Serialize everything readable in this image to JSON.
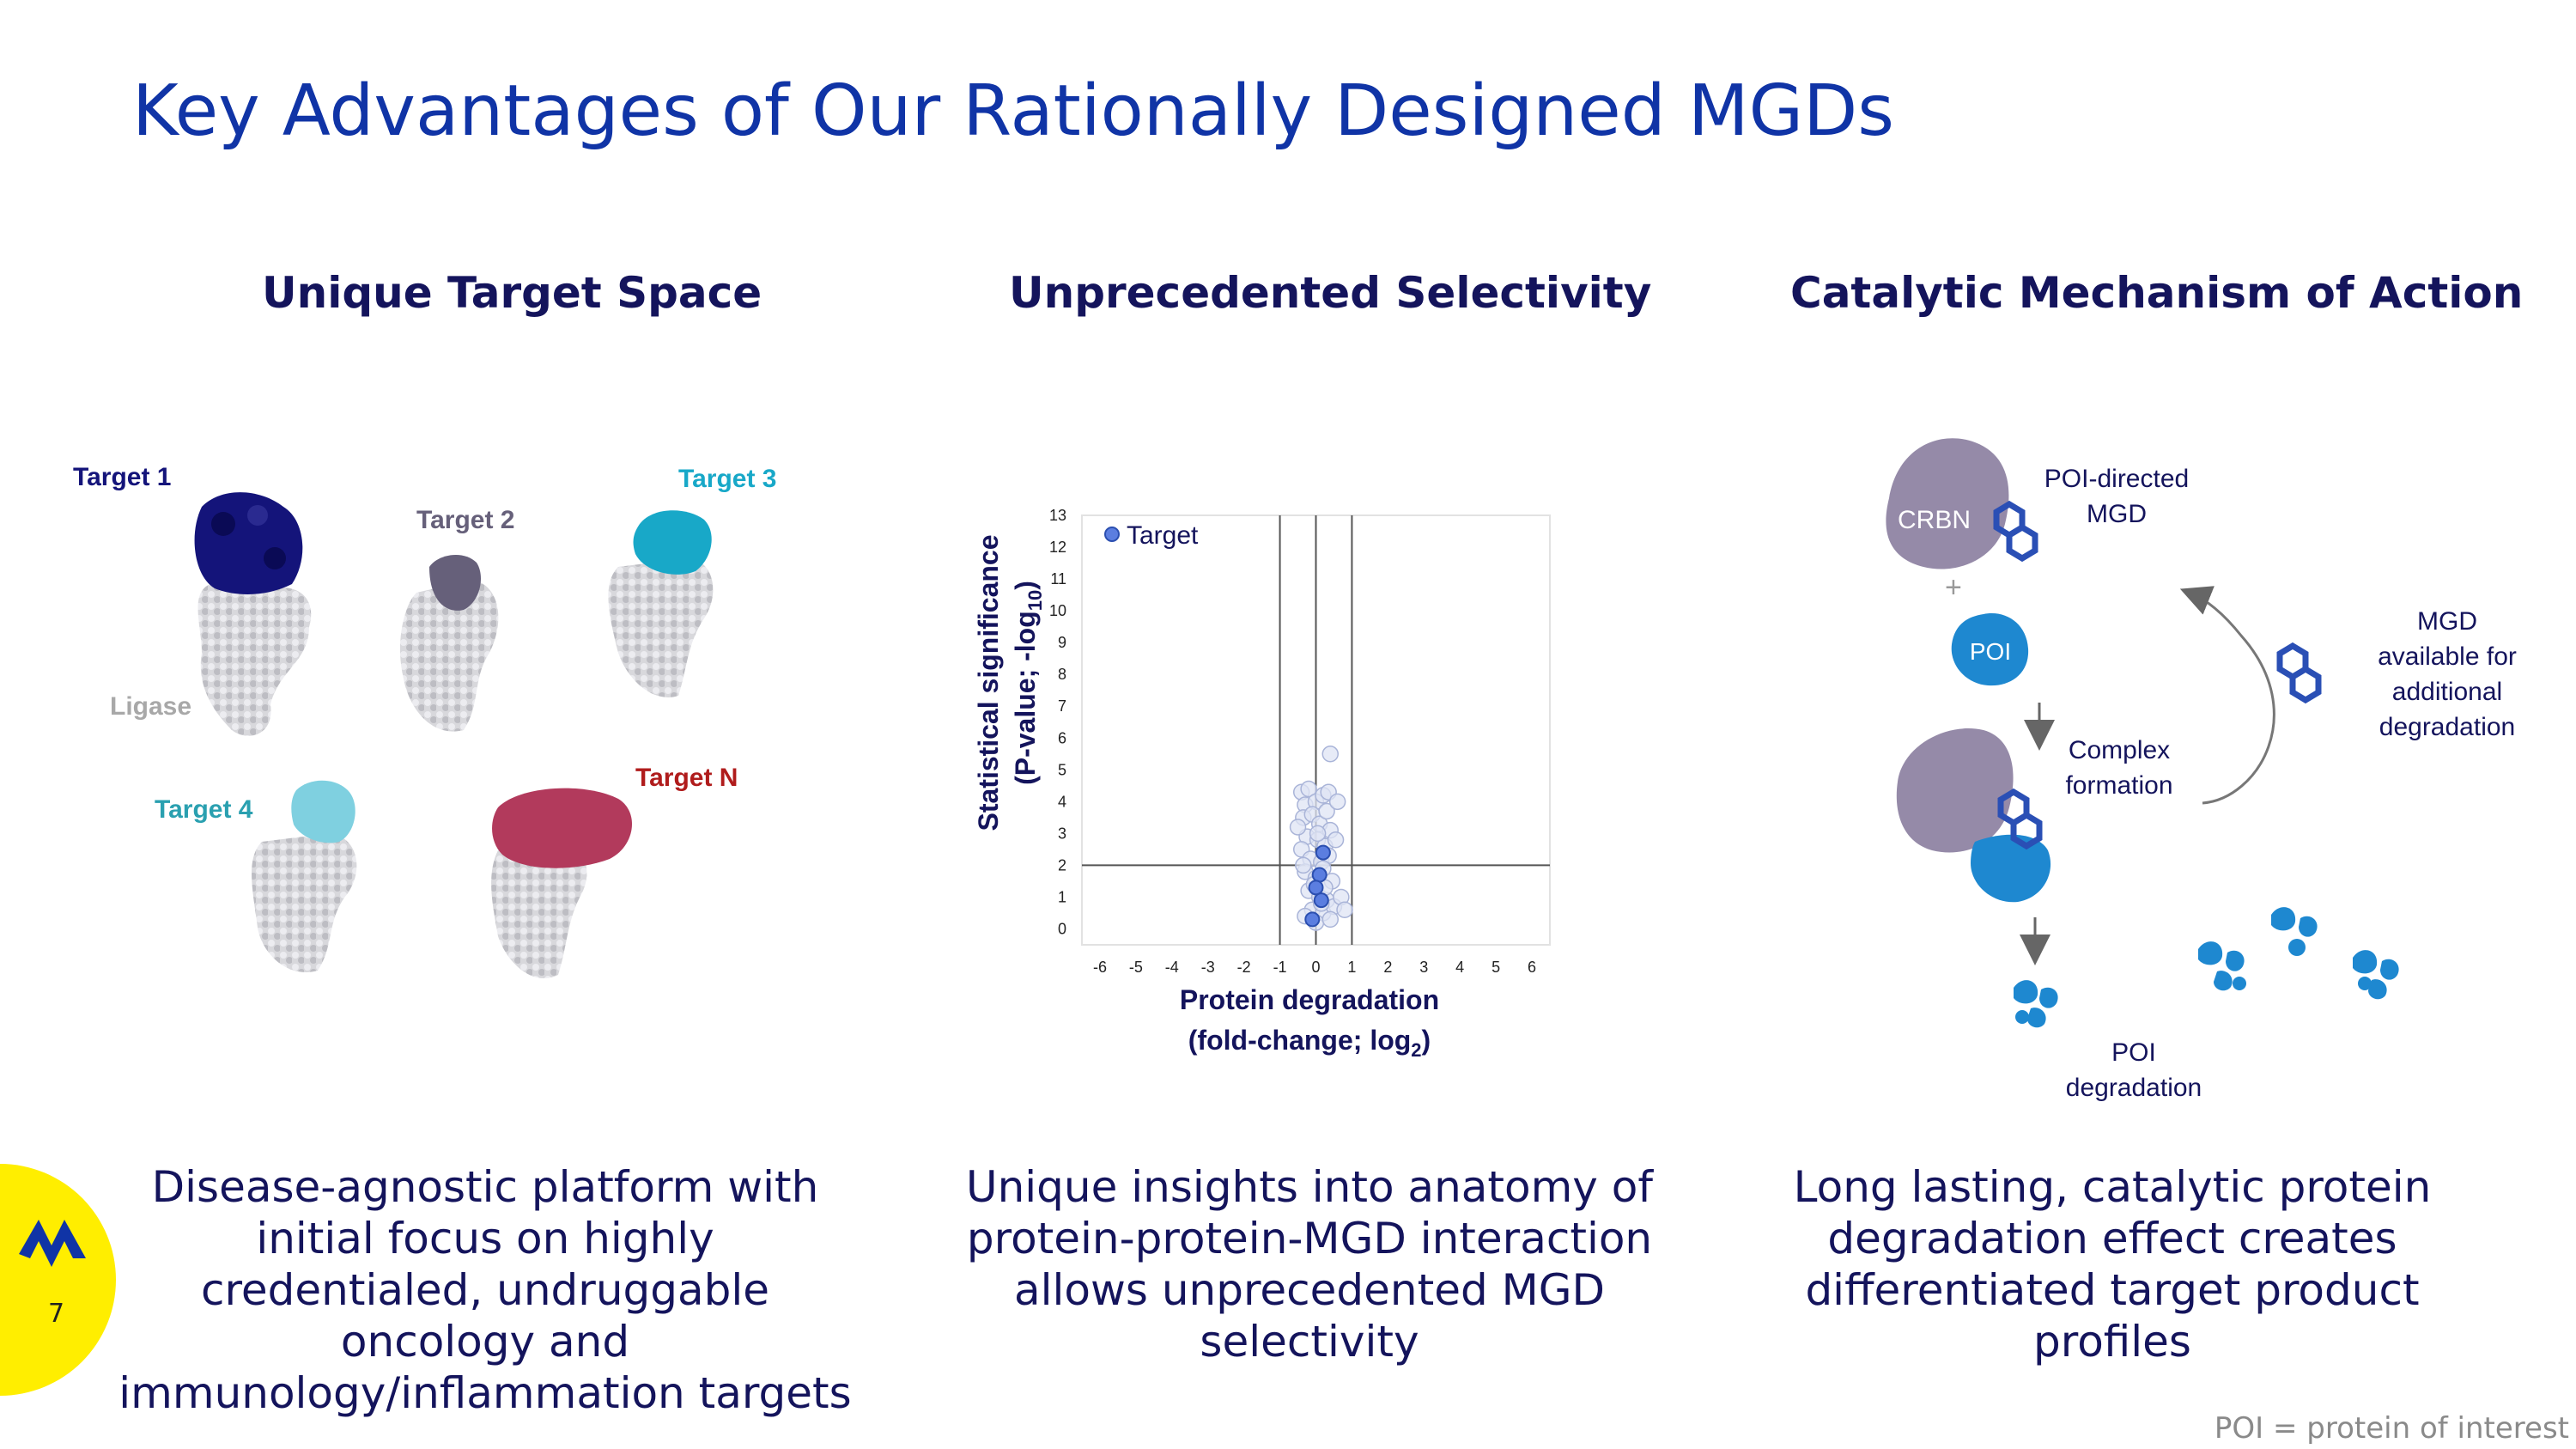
{
  "title": "Key Advantages of Our Rationally Designed MGDs",
  "columns": [
    {
      "heading": "Unique Target Space",
      "description": "Disease-agnostic platform with initial focus on highly credentialed, undruggable oncology and immunology/inflammation targets"
    },
    {
      "heading": "Unprecedented Selectivity",
      "description": "Unique insights into anatomy of protein-protein-MGD interaction allows unprecedented MGD selectivity"
    },
    {
      "heading": "Catalytic Mechanism of Action",
      "description": "Long lasting, catalytic protein degradation effect creates differentiated target product profiles"
    }
  ],
  "target_space": {
    "labels": [
      "Target 1",
      "Target 2",
      "Target 3",
      "Target 4",
      "Target N"
    ],
    "ligase_label": "Ligase"
  },
  "chart_data": {
    "type": "scatter",
    "title": "",
    "xlabel_line1": "Protein degradation",
    "xlabel_line2": "(fold-change; log",
    "xlabel_sub": "2",
    "xlabel_end": ")",
    "ylabel_line1": "Statistical significance",
    "ylabel_line2": "(P-value; -log",
    "ylabel_sub": "10",
    "ylabel_end": ")",
    "legend": "Target",
    "xlim": [
      -6.5,
      6.5
    ],
    "ylim": [
      -0.5,
      13
    ],
    "xticks": [
      -6,
      -5,
      -4,
      -3,
      -2,
      -1,
      0,
      1,
      2,
      3,
      4,
      5,
      6
    ],
    "yticks": [
      0,
      1,
      2,
      3,
      4,
      5,
      6,
      7,
      8,
      9,
      10,
      11,
      12,
      13
    ],
    "vlines": [
      -1,
      0,
      1
    ],
    "hline": 2,
    "background_points": [
      [
        -0.4,
        4.3
      ],
      [
        -0.3,
        3.9
      ],
      [
        -0.2,
        4.4
      ],
      [
        0.0,
        4.0
      ],
      [
        0.2,
        4.2
      ],
      [
        0.35,
        4.3
      ],
      [
        -0.35,
        3.5
      ],
      [
        -0.1,
        3.6
      ],
      [
        0.1,
        3.3
      ],
      [
        0.3,
        3.7
      ],
      [
        0.4,
        3.1
      ],
      [
        -0.25,
        2.9
      ],
      [
        0.05,
        2.8
      ],
      [
        0.25,
        2.6
      ],
      [
        -0.4,
        2.5
      ],
      [
        -0.15,
        2.2
      ],
      [
        0.15,
        2.1
      ],
      [
        0.35,
        2.3
      ],
      [
        -0.3,
        1.8
      ],
      [
        0.0,
        1.6
      ],
      [
        0.2,
        1.9
      ],
      [
        0.45,
        1.5
      ],
      [
        -0.2,
        1.2
      ],
      [
        0.1,
        1.0
      ],
      [
        0.3,
        0.9
      ],
      [
        -0.1,
        0.6
      ],
      [
        0.2,
        0.5
      ],
      [
        0.5,
        0.7
      ],
      [
        -0.3,
        0.4
      ],
      [
        0.0,
        0.2
      ],
      [
        0.15,
        0.8
      ],
      [
        0.4,
        0.3
      ],
      [
        -0.05,
        1.4
      ],
      [
        0.25,
        1.3
      ],
      [
        -0.35,
        2.0
      ],
      [
        0.05,
        3.0
      ],
      [
        0.4,
        5.5
      ],
      [
        0.6,
        4.0
      ],
      [
        -0.5,
        3.2
      ],
      [
        0.55,
        2.8
      ],
      [
        0.7,
        1.0
      ],
      [
        0.8,
        0.6
      ]
    ],
    "target_points": [
      [
        0.2,
        2.4
      ],
      [
        0.1,
        1.7
      ],
      [
        0.0,
        1.3
      ],
      [
        -0.1,
        0.3
      ],
      [
        0.15,
        0.9
      ]
    ]
  },
  "mechanism": {
    "crbn": "CRBN",
    "poi_directed_1": "POI-directed",
    "poi_directed_2": "MGD",
    "plus": "+",
    "poi": "POI",
    "complex_1": "Complex",
    "complex_2": "formation",
    "available_1": "MGD",
    "available_2": "available for",
    "available_3": "additional",
    "available_4": "degradation",
    "poi_degradation_1": "POI",
    "poi_degradation_2": "degradation"
  },
  "footnote": "POI = protein of interest",
  "page_number": "7",
  "colors": {
    "title": "#1034a6",
    "heading": "#14145c",
    "target1": "#14147a",
    "target2": "#66607a",
    "target3": "#18a8c8",
    "target4": "#2aa0b0",
    "targetN": "#b01c1c",
    "ligase": "#a8a8a8",
    "accent_yellow": "#ffee00",
    "poi_blue": "#1e88d0",
    "crbn_gray": "#958aa8"
  }
}
